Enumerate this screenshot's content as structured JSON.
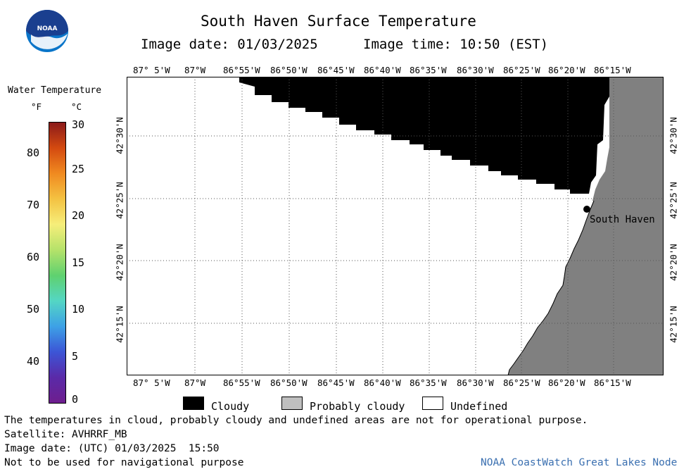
{
  "header": {
    "title": "South Haven Surface Temperature",
    "image_date_label": "Image date: 01/03/2025",
    "image_time_label": "Image time: 10:50 (EST)",
    "logo_text": "NOAA"
  },
  "scale": {
    "title": "Water Temperature",
    "unit_f": "°F",
    "unit_c": "°C",
    "f_ticks": [
      "80",
      "70",
      "60",
      "50",
      "40"
    ],
    "c_ticks": [
      "30",
      "25",
      "20",
      "15",
      "10",
      "5",
      "0"
    ],
    "colors": [
      "#8b1a1a",
      "#d44a10",
      "#f08a20",
      "#f4c242",
      "#f6ee7a",
      "#b5e26a",
      "#5fd16f",
      "#54d6c4",
      "#3da1e6",
      "#3c55d6",
      "#5a2aa8",
      "#6e1e8e"
    ]
  },
  "map": {
    "lon_labels": [
      "87° 5'W",
      "87°W",
      "86°55'W",
      "86°50'W",
      "86°45'W",
      "86°40'W",
      "86°35'W",
      "86°30'W",
      "86°25'W",
      "86°20'W",
      "86°15'W"
    ],
    "lat_labels": [
      "42°30'N",
      "42°25'N",
      "42°20'N",
      "42°15'N"
    ],
    "location_label": "South Haven",
    "colors": {
      "cloudy": "#000000",
      "land": "#808080",
      "undefined": "#ffffff"
    }
  },
  "legend": {
    "cloudy": "Cloudy",
    "probably_cloudy": "Probably cloudy",
    "undefined": "Undefined",
    "probably_cloudy_color": "#bfbfbf"
  },
  "footer": {
    "disclaimer": "The temperatures in cloud, probably cloudy and undefined areas are not for operational purpose.",
    "satellite": "Satellite: AVHRRF_MB",
    "utc_date": "Image date: (UTC) 01/03/2025  15:50",
    "nav_warning": "Not to be used for navigational purpose",
    "credit": "NOAA CoastWatch Great Lakes Node"
  }
}
